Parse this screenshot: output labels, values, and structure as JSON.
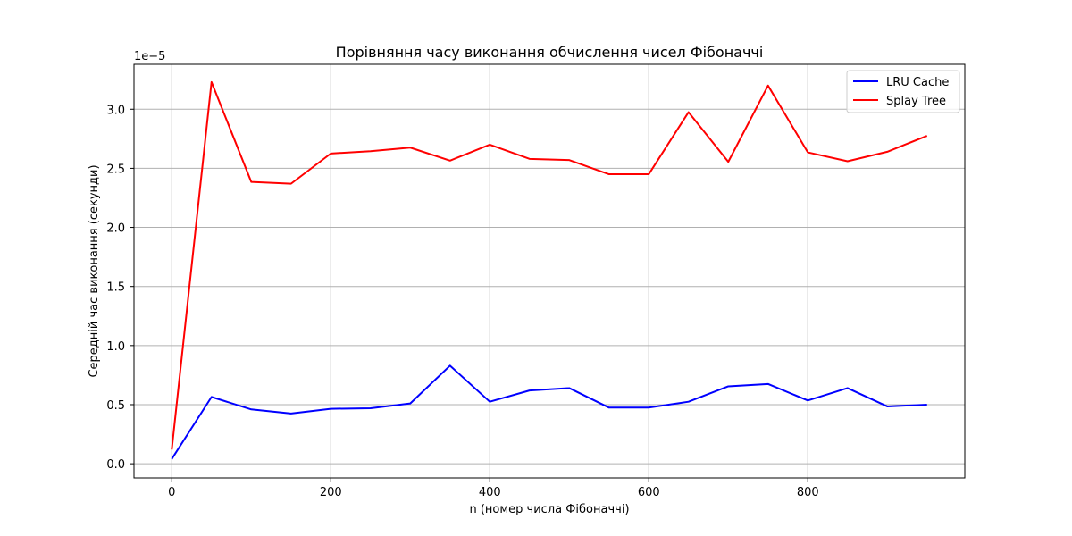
{
  "chart_data": {
    "type": "line",
    "title": "Порівняння часу виконання обчислення чисел Фібоначчі",
    "xlabel": "n (номер числа Фібоначчі)",
    "ylabel": "Середній час виконання (секунди)",
    "y_offset_label": "1e−5",
    "x": [
      0,
      50,
      100,
      150,
      200,
      250,
      300,
      350,
      400,
      450,
      500,
      550,
      600,
      650,
      700,
      750,
      800,
      850,
      900,
      950
    ],
    "xlim": [
      -47.5,
      997.5
    ],
    "ylim": [
      -1.2e-06,
      3.38e-05
    ],
    "x_ticks": [
      0,
      200,
      400,
      600,
      800
    ],
    "x_tick_labels": [
      "0",
      "200",
      "400",
      "600",
      "800"
    ],
    "y_ticks": [
      0,
      5e-06,
      1e-05,
      1.5e-05,
      2e-05,
      2.5e-05,
      3e-05
    ],
    "y_tick_labels": [
      "0.0",
      "0.5",
      "1.0",
      "1.5",
      "2.0",
      "2.5",
      "3.0"
    ],
    "grid": true,
    "legend_position": "top-right",
    "series": [
      {
        "name": "LRU Cache",
        "color": "#0000ff",
        "values": [
          4e-07,
          5.65e-06,
          4.6e-06,
          4.25e-06,
          4.65e-06,
          4.7e-06,
          5.1e-06,
          8.3e-06,
          5.25e-06,
          6.2e-06,
          6.4e-06,
          4.75e-06,
          4.75e-06,
          5.25e-06,
          6.55e-06,
          6.75e-06,
          5.35e-06,
          6.4e-06,
          4.85e-06,
          5e-06
        ]
      },
      {
        "name": "Splay Tree",
        "color": "#ff0000",
        "values": [
          1.2e-06,
          3.23e-05,
          2.385e-05,
          2.37e-05,
          2.625e-05,
          2.645e-05,
          2.675e-05,
          2.565e-05,
          2.7e-05,
          2.58e-05,
          2.57e-05,
          2.45e-05,
          2.45e-05,
          2.975e-05,
          2.555e-05,
          3.2e-05,
          2.635e-05,
          2.56e-05,
          2.64e-05,
          2.775e-05
        ]
      }
    ]
  }
}
